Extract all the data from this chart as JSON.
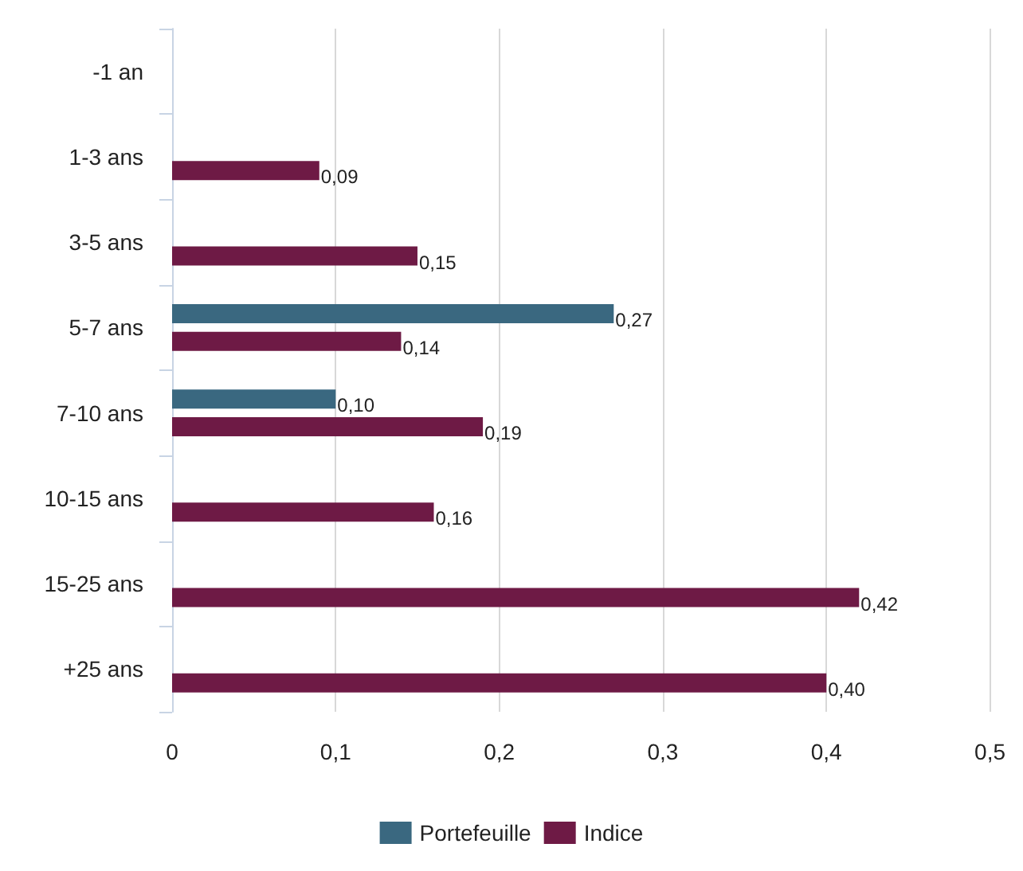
{
  "chart_data": {
    "type": "bar",
    "orientation": "horizontal",
    "categories": [
      "-1 an",
      "1-3 ans",
      "3-5 ans",
      "5-7 ans",
      "7-10 ans",
      "10-15 ans",
      "15-25 ans",
      "+25 ans"
    ],
    "series": [
      {
        "name": "Portefeuille",
        "color": "#3a6880",
        "values": [
          null,
          null,
          null,
          0.27,
          0.1,
          null,
          null,
          null
        ],
        "value_labels": [
          null,
          null,
          null,
          "0,27",
          "0,10",
          null,
          null,
          null
        ]
      },
      {
        "name": "Indice",
        "color": "#6e1a45",
        "values": [
          null,
          0.09,
          0.15,
          0.14,
          0.19,
          0.16,
          0.42,
          0.4
        ],
        "value_labels": [
          null,
          "0,09",
          "0,15",
          "0,14",
          "0,19",
          "0,16",
          "0,42",
          "0,40"
        ]
      }
    ],
    "xlim": [
      0,
      0.5
    ],
    "xticks": [
      0,
      {
        "value": 0.1,
        "label": "0,1"
      },
      {
        "value": 0.2,
        "label": "0,2"
      },
      {
        "value": 0.3,
        "label": "0,3"
      },
      {
        "value": 0.4,
        "label": "0,4"
      },
      {
        "value": 0.5,
        "label": "0,5"
      }
    ],
    "grid": "x",
    "legend": "bottom"
  }
}
